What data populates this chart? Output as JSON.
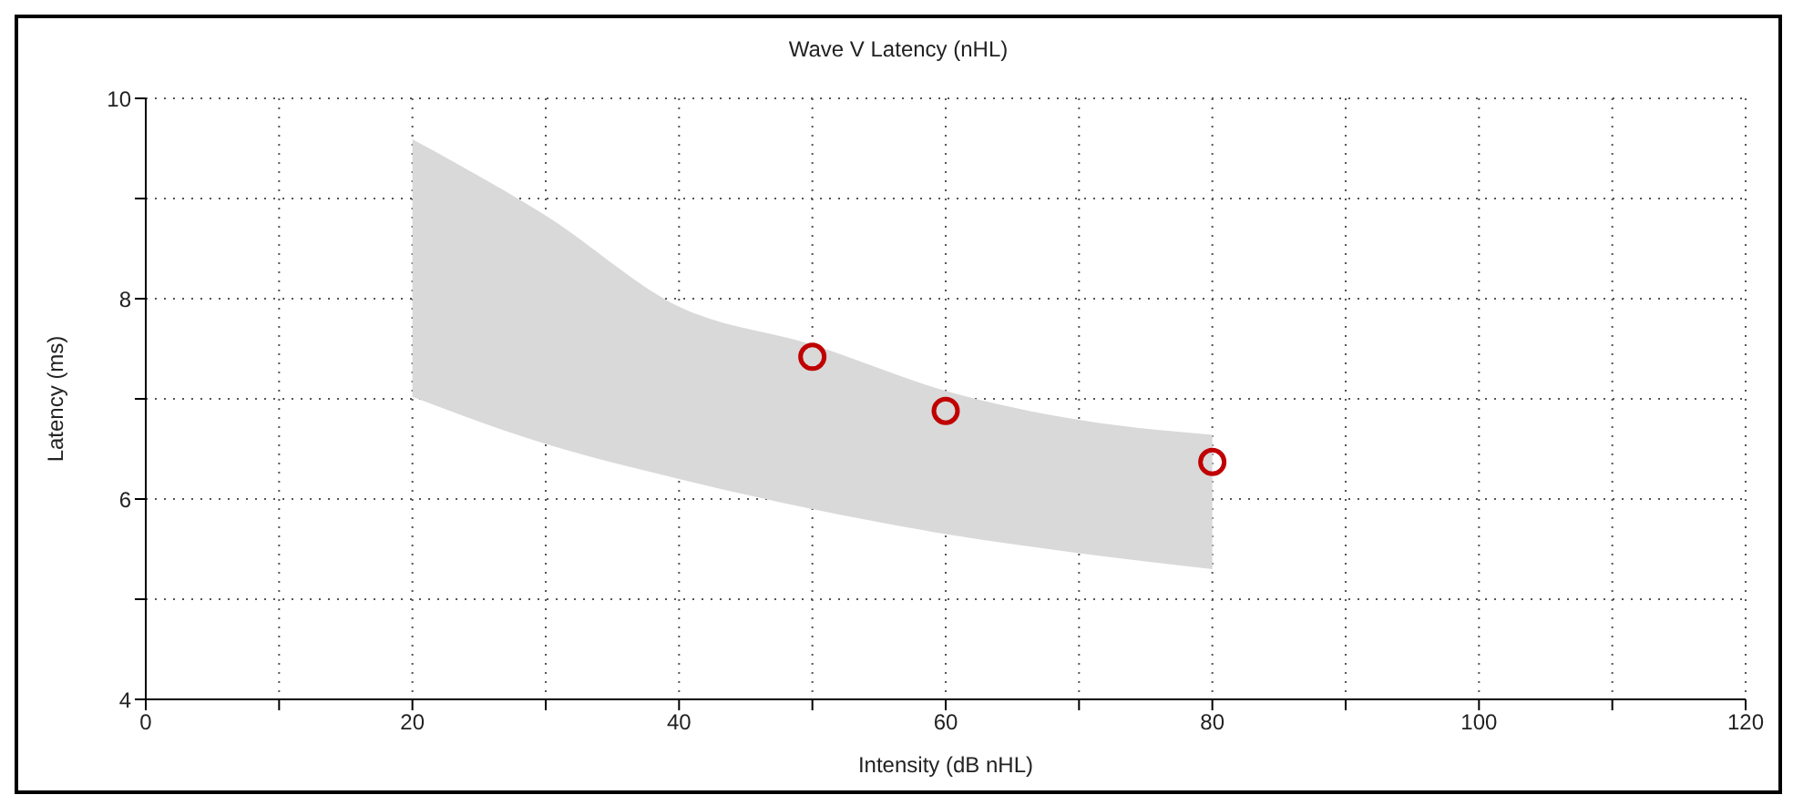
{
  "chart_data": {
    "type": "scatter",
    "title": "Wave V Latency (nHL)",
    "xlabel": "Intensity (dB nHL)",
    "ylabel": "Latency (ms)",
    "xlim": [
      0,
      120
    ],
    "ylim": [
      4,
      10
    ],
    "xticks": [
      0,
      {
        "value": 10,
        "label": null
      },
      20,
      {
        "value": 30,
        "label": null
      },
      40,
      {
        "value": 50,
        "label": null
      },
      60,
      {
        "value": 70,
        "label": null
      },
      80,
      {
        "value": 90,
        "label": null
      },
      100,
      {
        "value": 110,
        "label": null
      },
      120
    ],
    "yticks": [
      4,
      {
        "value": 5,
        "label": null
      },
      6,
      {
        "value": 7,
        "label": null
      },
      8,
      {
        "value": 9,
        "label": null
      },
      10
    ],
    "grid": true,
    "marker": "circle",
    "series": [
      {
        "type": "area",
        "color": "#d9d9d9",
        "x": [
          20,
          30,
          40,
          50,
          60,
          70,
          80
        ],
        "values": [
          null,
          null,
          null,
          null,
          null,
          null,
          null
        ],
        "lower": [
          7.02,
          6.55,
          6.2,
          5.9,
          5.65,
          5.46,
          5.3
        ],
        "upper": [
          9.59,
          8.83,
          7.92,
          7.54,
          7.08,
          6.79,
          6.64
        ]
      },
      {
        "color": "#c00000",
        "x": [
          50,
          60,
          80
        ],
        "values": [
          7.42,
          6.88,
          6.37
        ]
      }
    ]
  }
}
